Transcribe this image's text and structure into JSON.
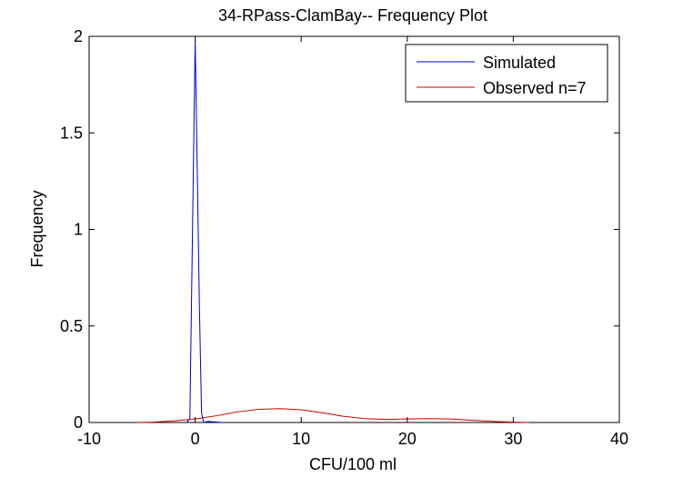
{
  "chart_data": {
    "type": "line",
    "title": "34-RPass-ClamBay-- Frequency Plot",
    "xlabel": "CFU/100 ml",
    "ylabel": "Frequency",
    "xlim": [
      -10,
      40
    ],
    "ylim": [
      0,
      2
    ],
    "xticks": [
      -10,
      0,
      10,
      20,
      30,
      40
    ],
    "yticks": [
      0,
      0.5,
      1,
      1.5,
      2
    ],
    "xtick_labels": [
      "-10",
      "0",
      "10",
      "20",
      "30",
      "40"
    ],
    "ytick_labels": [
      "0",
      "0.5",
      "1",
      "1.5",
      "2"
    ],
    "grid": false,
    "legend_position": "top-right",
    "series": [
      {
        "name": "Simulated",
        "color": "#0000cc",
        "x": [
          -0.8,
          -0.5,
          -0.2,
          0.0,
          0.2,
          0.4,
          0.6,
          0.8,
          1.2,
          1.8,
          2.5
        ],
        "y": [
          0.0,
          0.02,
          1.2,
          1.98,
          1.3,
          0.6,
          0.05,
          0.0,
          0.005,
          0.003,
          0.0
        ]
      },
      {
        "name": "Observed n=7",
        "color": "#cc0000",
        "x": [
          -5.5,
          -4,
          -2,
          0,
          2,
          4,
          6,
          8,
          10,
          12,
          14,
          16,
          18,
          20,
          22,
          24,
          26,
          28,
          30,
          31.5
        ],
        "y": [
          0.0,
          0.002,
          0.008,
          0.018,
          0.035,
          0.055,
          0.068,
          0.072,
          0.066,
          0.05,
          0.032,
          0.02,
          0.016,
          0.018,
          0.02,
          0.018,
          0.012,
          0.006,
          0.002,
          0.0
        ]
      }
    ]
  }
}
